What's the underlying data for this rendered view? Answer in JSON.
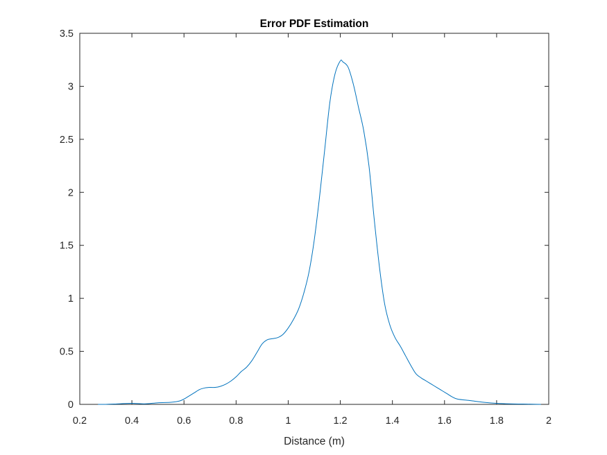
{
  "chart_data": {
    "type": "line",
    "title": "Error PDF Estimation",
    "xlabel": "Distance (m)",
    "ylabel": "",
    "xlim": [
      0.2,
      2
    ],
    "ylim": [
      0,
      3.5
    ],
    "x_ticks": [
      "0.2",
      "0.4",
      "0.6",
      "0.8",
      "1",
      "1.2",
      "1.4",
      "1.6",
      "1.8",
      "2"
    ],
    "y_ticks": [
      "0",
      "0.5",
      "1",
      "1.5",
      "2",
      "2.5",
      "3",
      "3.5"
    ],
    "grid": false,
    "series": [
      {
        "color": "#0072BD",
        "x": [
          0.27,
          0.3,
          0.35,
          0.4,
          0.45,
          0.5,
          0.55,
          0.58,
          0.6,
          0.62,
          0.64,
          0.66,
          0.68,
          0.7,
          0.72,
          0.74,
          0.76,
          0.78,
          0.8,
          0.82,
          0.84,
          0.86,
          0.88,
          0.9,
          0.92,
          0.94,
          0.96,
          0.98,
          1.0,
          1.02,
          1.04,
          1.06,
          1.08,
          1.1,
          1.12,
          1.14,
          1.16,
          1.18,
          1.2,
          1.21,
          1.23,
          1.25,
          1.27,
          1.29,
          1.31,
          1.33,
          1.35,
          1.37,
          1.39,
          1.41,
          1.43,
          1.45,
          1.47,
          1.49,
          1.51,
          1.53,
          1.55,
          1.57,
          1.59,
          1.61,
          1.63,
          1.65,
          1.7,
          1.75,
          1.8,
          1.85,
          1.9,
          1.95,
          1.97
        ],
        "y": [
          0.0,
          0.0,
          0.005,
          0.01,
          0.005,
          0.015,
          0.02,
          0.03,
          0.05,
          0.08,
          0.11,
          0.14,
          0.155,
          0.16,
          0.16,
          0.17,
          0.19,
          0.22,
          0.26,
          0.31,
          0.35,
          0.41,
          0.49,
          0.57,
          0.61,
          0.62,
          0.63,
          0.66,
          0.72,
          0.8,
          0.9,
          1.05,
          1.25,
          1.55,
          1.95,
          2.4,
          2.85,
          3.12,
          3.24,
          3.23,
          3.18,
          3.02,
          2.8,
          2.58,
          2.25,
          1.75,
          1.3,
          0.95,
          0.75,
          0.63,
          0.55,
          0.46,
          0.37,
          0.29,
          0.25,
          0.22,
          0.19,
          0.16,
          0.13,
          0.1,
          0.07,
          0.05,
          0.035,
          0.02,
          0.01,
          0.005,
          0.003,
          0.001,
          0.0
        ]
      }
    ]
  }
}
